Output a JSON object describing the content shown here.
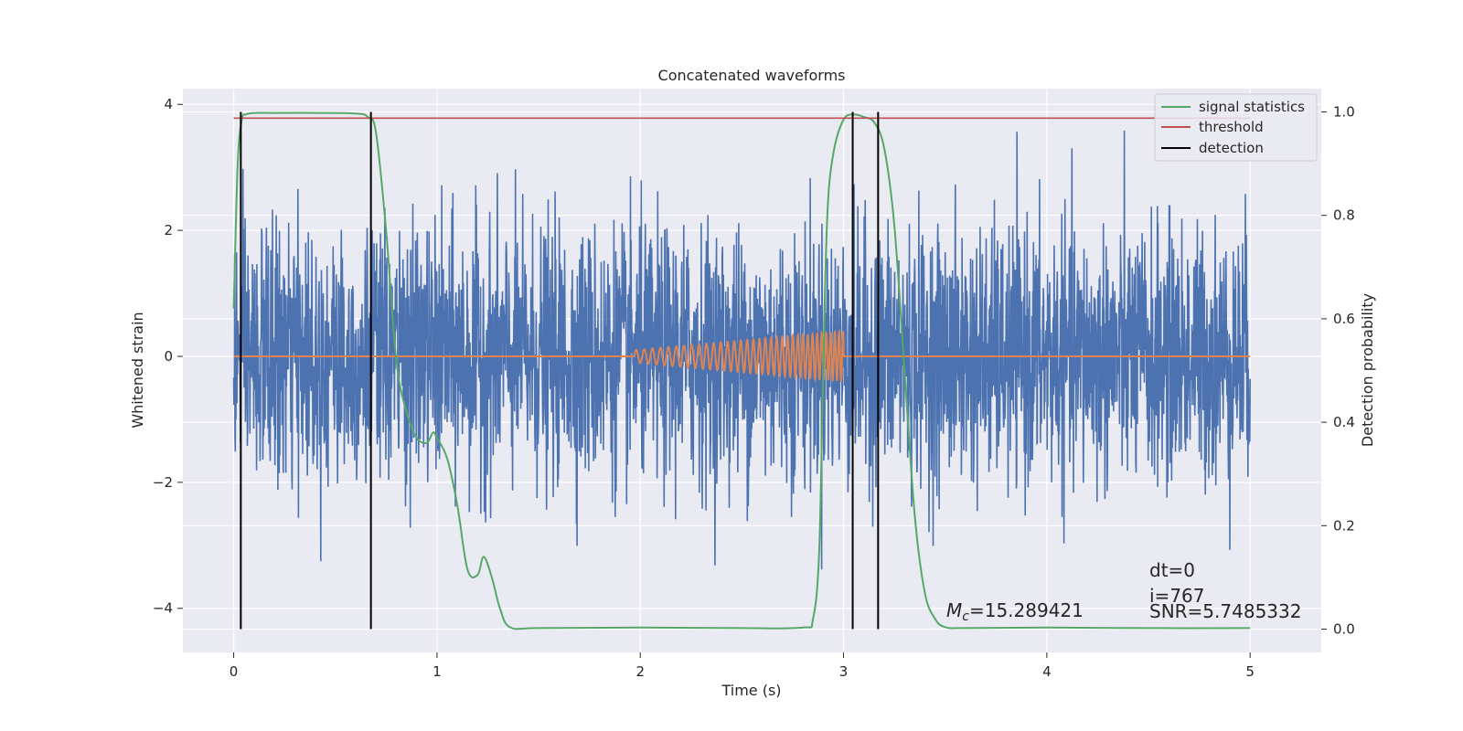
{
  "chart_data": {
    "type": "line",
    "title": "Concatenated waveforms",
    "xlabel": "Time (s)",
    "ylabel": "Whitened strain",
    "y2label": "Detection probability",
    "xlim": [
      -0.25,
      5.35
    ],
    "ylim": [
      -4.7,
      4.25
    ],
    "y2lim": [
      -0.045,
      1.045
    ],
    "xticks": [
      0,
      1,
      2,
      3,
      4,
      5
    ],
    "yticks": [
      -4,
      -2,
      0,
      2,
      4
    ],
    "y2ticks": [
      0.0,
      0.2,
      0.4,
      0.6,
      0.8,
      1.0
    ],
    "xtick_labels": [
      "0",
      "1",
      "2",
      "3",
      "4",
      "5"
    ],
    "ytick_labels": [
      "−4",
      "−2",
      "0",
      "2",
      "4"
    ],
    "y2tick_labels": [
      "0.0",
      "0.2",
      "0.4",
      "0.6",
      "0.8",
      "1.0"
    ],
    "grid": true,
    "legend_position": "top-right",
    "colors": {
      "strain": "#4c72b0",
      "template": "#dd8452",
      "signal_statistics": "#55a868",
      "threshold": "#c44e52",
      "detection": "#000000",
      "background": "#eaeaf2",
      "grid": "#ffffff"
    },
    "series": [
      {
        "name": "",
        "role": "whitened_strain_noise",
        "axis": "left",
        "x_range": [
          0,
          5
        ],
        "amplitude_std": 1.0,
        "max_abs": 3.9
      },
      {
        "name": "",
        "role": "injected_chirp",
        "axis": "left",
        "x_start": 1.97,
        "x_end": 3.0,
        "amplitude_start": 0.1,
        "amplitude_end": 0.4,
        "freq_start_hz": 25,
        "freq_end_hz": 50
      },
      {
        "name": "signal statistics",
        "axis": "right",
        "x": [
          0.0,
          0.02,
          0.04,
          0.06,
          0.1,
          0.2,
          0.4,
          0.6,
          0.66,
          0.7,
          0.75,
          0.8,
          0.85,
          0.9,
          0.95,
          0.98,
          1.0,
          1.05,
          1.1,
          1.15,
          1.2,
          1.23,
          1.27,
          1.31,
          1.36,
          1.5,
          2.0,
          2.5,
          2.8,
          2.85,
          2.88,
          2.9,
          2.92,
          2.95,
          3.0,
          3.05,
          3.1,
          3.15,
          3.2,
          3.25,
          3.3,
          3.35,
          3.4,
          3.45,
          3.5,
          3.6,
          4.0,
          4.5,
          5.0
        ],
        "y": [
          0.62,
          0.9,
          0.985,
          0.995,
          0.998,
          0.998,
          0.998,
          0.997,
          0.99,
          0.96,
          0.77,
          0.52,
          0.42,
          0.37,
          0.36,
          0.38,
          0.37,
          0.33,
          0.24,
          0.115,
          0.105,
          0.14,
          0.1,
          0.04,
          0.0035,
          0.002,
          0.003,
          0.002,
          0.003,
          0.02,
          0.15,
          0.5,
          0.8,
          0.92,
          0.985,
          0.995,
          0.99,
          0.98,
          0.93,
          0.78,
          0.5,
          0.22,
          0.07,
          0.02,
          0.004,
          0.002,
          0.003,
          0.002,
          0.002
        ]
      },
      {
        "name": "threshold",
        "axis": "right",
        "x": [
          0,
          5
        ],
        "y": [
          0.988,
          0.988
        ]
      },
      {
        "name": "detection",
        "axis": "right",
        "type": "vlines",
        "x": [
          0.035,
          0.675,
          3.045,
          3.17
        ],
        "y_range": [
          0,
          1
        ]
      }
    ],
    "annotations": {
      "mc_symbol": "M",
      "mc_subscript": "c",
      "mc_value": "=15.289421",
      "dt": "dt=0",
      "i": "i=767",
      "snr": "SNR=5.7485332"
    }
  }
}
